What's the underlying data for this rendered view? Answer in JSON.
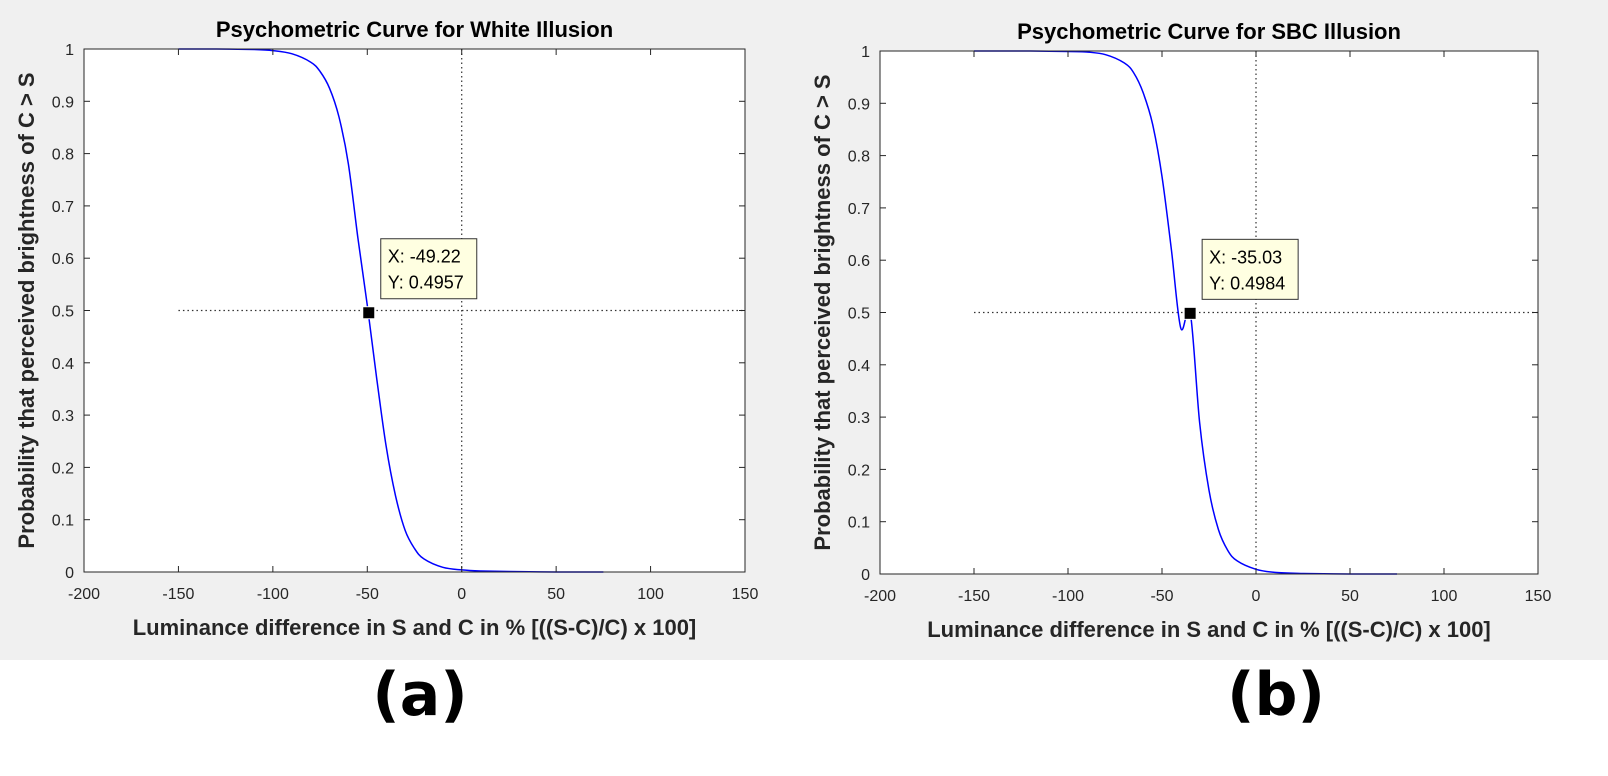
{
  "panels": [
    {
      "id": "a",
      "label": "(a)",
      "chart_data": {
        "type": "line",
        "title": "Psychometric Curve for White Illusion",
        "xlabel": "Luminance difference in S and C in % [((S-C)/C) x 100]",
        "ylabel": "Probability that perceived brightness of C > S",
        "xlim": [
          -200,
          150
        ],
        "ylim": [
          0,
          1
        ],
        "xticks": [
          -200,
          -150,
          -100,
          -50,
          0,
          50,
          100,
          150
        ],
        "yticks": [
          0,
          0.1,
          0.2,
          0.3,
          0.4,
          0.5,
          0.6,
          0.7,
          0.8,
          0.9,
          1
        ],
        "grid": false,
        "series": [
          {
            "color": "#0000ff",
            "x": [
              -150,
              -130,
              -110,
              -100,
              -90,
              -80,
              -75,
              -70,
              -65,
              -60,
              -55,
              -50,
              -45,
              -40,
              -35,
              -30,
              -25,
              -20,
              -10,
              0,
              10,
              25,
              50,
              75
            ],
            "y": [
              1.0,
              1.0,
              0.999,
              0.997,
              0.991,
              0.975,
              0.957,
              0.925,
              0.87,
              0.78,
              0.64,
              0.51,
              0.37,
              0.24,
              0.145,
              0.08,
              0.045,
              0.025,
              0.009,
              0.004,
              0.002,
              0.001,
              0.0,
              0.0
            ]
          }
        ],
        "reference_lines": {
          "x": 0,
          "y": 0.5,
          "xmin": -150,
          "xmax": 150
        },
        "marker": {
          "x": -49.22,
          "y": 0.4957
        },
        "datatip": {
          "x_text": "X: -49.22",
          "y_text": "Y: 0.4957"
        }
      }
    },
    {
      "id": "b",
      "label": "(b)",
      "chart_data": {
        "type": "line",
        "title": "Psychometric Curve for SBC Illusion",
        "xlabel": "Luminance difference in S and C in % [((S-C)/C) x 100]",
        "ylabel": "Probability that perceived brightness of C > S",
        "xlim": [
          -200,
          150
        ],
        "ylim": [
          0,
          1
        ],
        "xticks": [
          -200,
          -150,
          -100,
          -50,
          0,
          50,
          100,
          150
        ],
        "yticks": [
          0,
          0.1,
          0.2,
          0.3,
          0.4,
          0.5,
          0.6,
          0.7,
          0.8,
          0.9,
          1
        ],
        "grid": false,
        "series": [
          {
            "color": "#0000ff",
            "x": [
              -150,
              -120,
              -100,
              -90,
              -80,
              -70,
              -65,
              -60,
              -55,
              -50,
              -45,
              -40,
              -35,
              -30,
              -25,
              -20,
              -15,
              -10,
              0,
              10,
              25,
              50,
              75
            ],
            "y": [
              1.0,
              1.0,
              0.999,
              0.998,
              0.993,
              0.977,
              0.958,
              0.92,
              0.86,
              0.76,
              0.62,
              0.47,
              0.5,
              0.29,
              0.16,
              0.085,
              0.045,
              0.025,
              0.009,
              0.003,
              0.001,
              0.0,
              0.0
            ]
          }
        ],
        "reference_lines": {
          "x": 0,
          "y": 0.5,
          "xmin": -150,
          "xmax": 150
        },
        "marker": {
          "x": -35.03,
          "y": 0.4984
        },
        "datatip": {
          "x_text": "X: -35.03",
          "y_text": "Y: 0.4984"
        }
      }
    }
  ]
}
